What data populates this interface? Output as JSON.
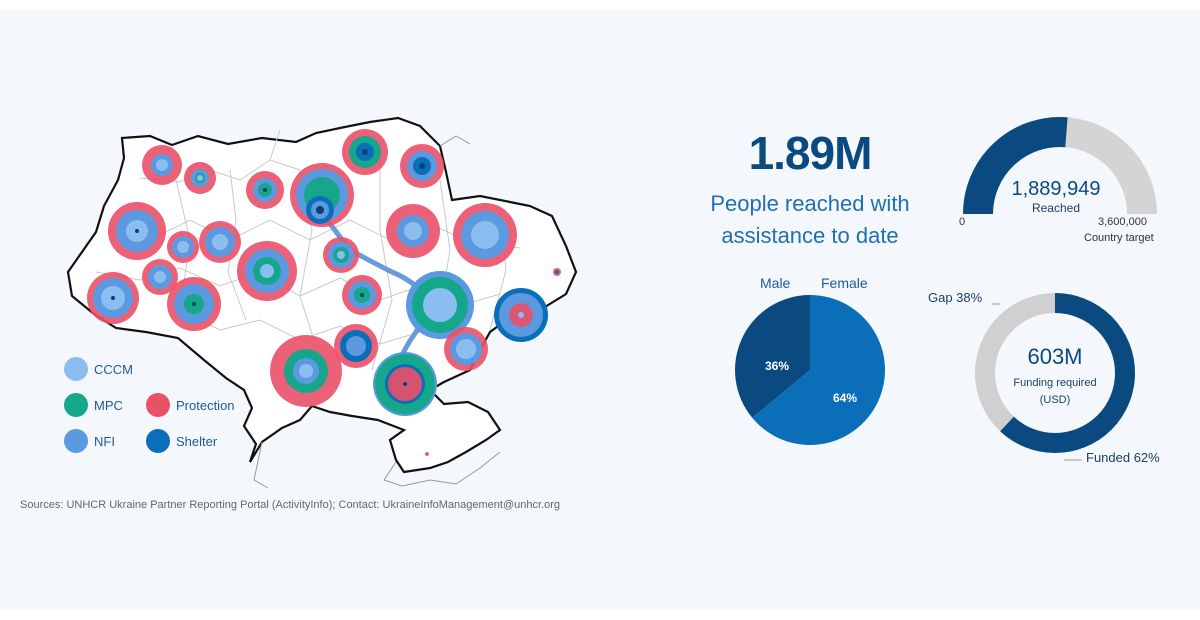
{
  "legend": [
    {
      "name": "CCCM",
      "color": "#8cbdf0"
    },
    {
      "name": "MPC",
      "color": "#16a68c"
    },
    {
      "name": "NFI",
      "color": "#5b9ae0"
    },
    {
      "name": "Protection",
      "color": "#ea5068"
    },
    {
      "name": "Shelter",
      "color": "#0a6fb8"
    }
  ],
  "headline": {
    "value": "1.89M",
    "caption_line1": "People reached with",
    "caption_line2": "assistance to date"
  },
  "sources": "Sources: UNHCR Ukraine Partner Reporting Portal (ActivityInfo); Contact: UkraineInfoManagement@unhcr.org",
  "chart_data": [
    {
      "type": "gauge",
      "value": 1889949,
      "value_label": "1,889,949",
      "value_caption": "Reached",
      "min": 0,
      "min_label": "0",
      "max": 3600000,
      "max_label": "3,600,000",
      "max_caption": "Country target",
      "colors": {
        "filled": "#0b4a80",
        "remaining": "#d4d4d4"
      }
    },
    {
      "type": "pie",
      "categories": [
        "Male",
        "Female"
      ],
      "values": [
        36,
        64
      ],
      "labels": [
        "36%",
        "64%"
      ],
      "colors": [
        "#0b4a80",
        "#0a6fb8"
      ]
    },
    {
      "type": "donut",
      "center_value": "603M",
      "center_caption_line1": "Funding required",
      "center_caption_line2": "(USD)",
      "categories": [
        "Funded",
        "Gap"
      ],
      "values": [
        62,
        38
      ],
      "labels": [
        "Funded 62%",
        "Gap 38%"
      ],
      "colors": [
        "#0b4a80",
        "#d0d0d0"
      ]
    }
  ]
}
